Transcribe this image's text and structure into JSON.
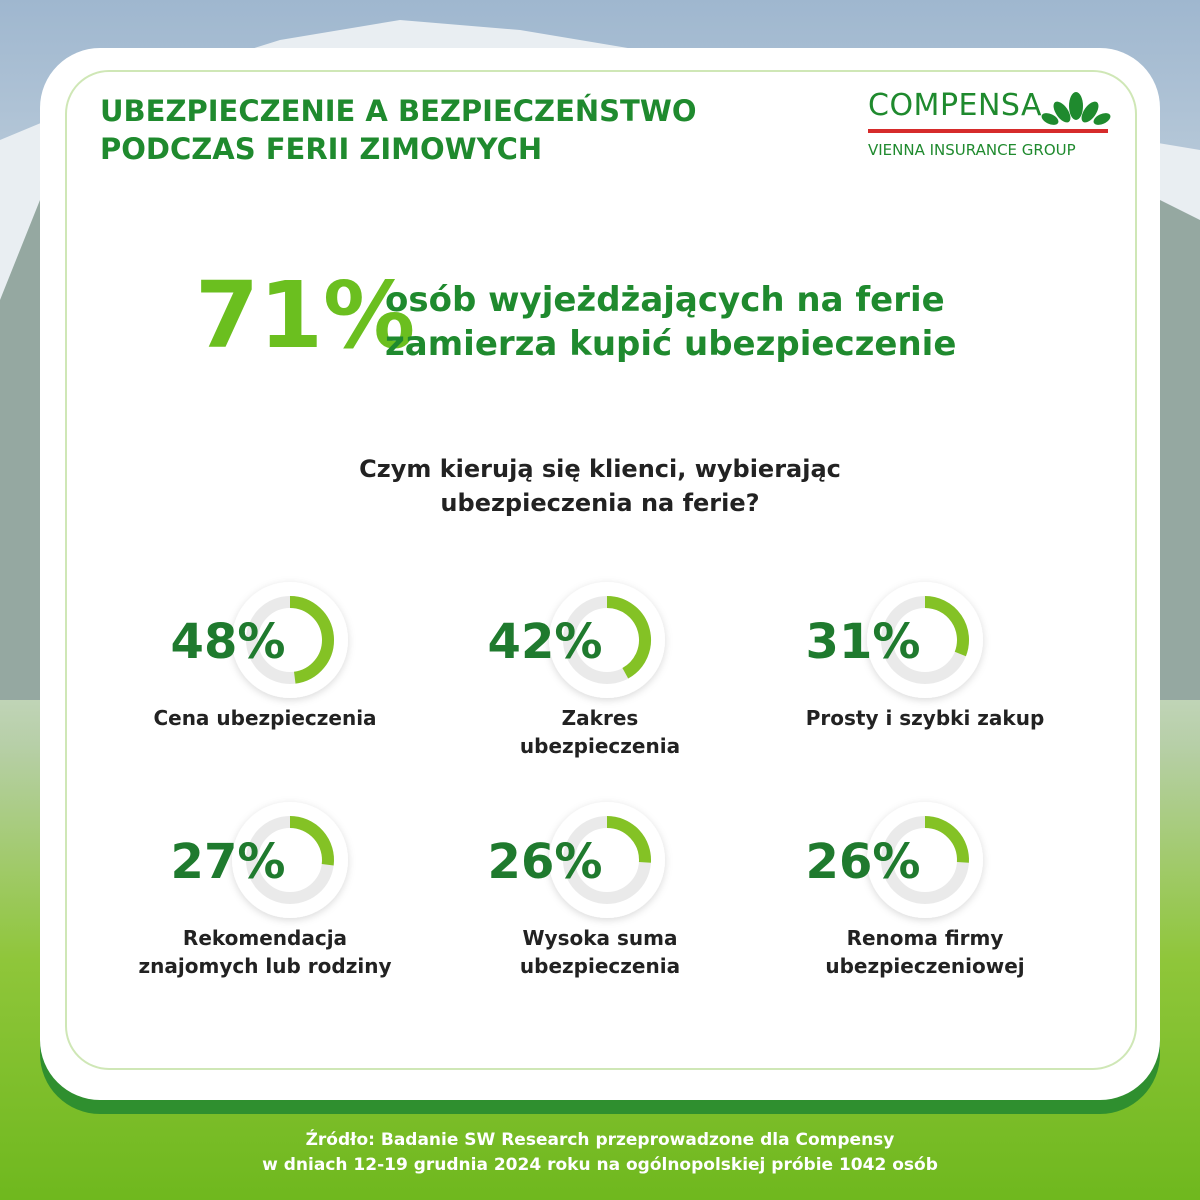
{
  "header": {
    "title_lines": [
      "UBEZPIECZENIE A BEZPIECZEŃSTWO",
      "PODCZAS FERII ZIMOWYCH"
    ],
    "logo": {
      "brand": "COMPENSA",
      "group": "VIENNA INSURANCE GROUP"
    }
  },
  "headline": {
    "percent": "71%",
    "text_lines": [
      "osób wyjeżdżających na ferie",
      "zamierza kupić ubezpieczenie"
    ]
  },
  "chart_data": {
    "type": "gauge",
    "title": "Czym kierują się klienci, wybierając ubezpieczenia na ferie?",
    "categories": [
      "Cena ubezpieczenia",
      "Zakres ubezpieczenia",
      "Prosty i szybki zakup",
      "Rekomendacja znajomych lub rodziny",
      "Wysoka suma ubezpieczenia",
      "Renoma firmy ubezpieczeniowej"
    ],
    "values": [
      48,
      42,
      31,
      27,
      26,
      26
    ],
    "value_labels": [
      "48%",
      "42%",
      "31%",
      "27%",
      "26%",
      "26%"
    ],
    "color": "#84c225"
  },
  "footer": {
    "source_lines": [
      "Źródło: Badanie SW Research przeprowadzone dla Compensy",
      "w dniach 12-19 grudnia 2024 roku na ogólnopolskiej próbie 1042 osób"
    ]
  }
}
